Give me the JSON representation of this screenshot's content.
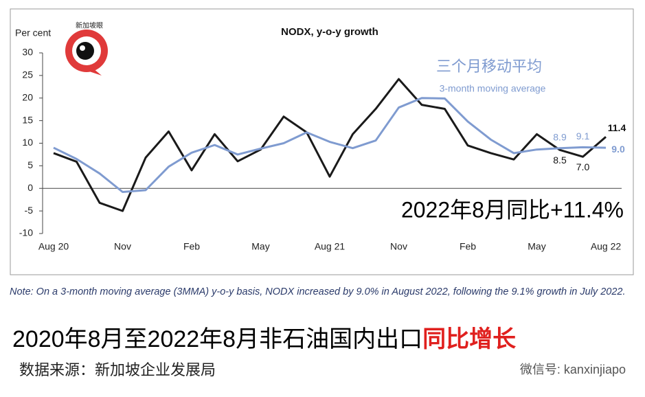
{
  "chart_data": {
    "type": "line",
    "axis_label": "Per cent",
    "title": "NODX, y-o-y growth",
    "categories": [
      "Aug 20",
      null,
      null,
      "Nov",
      null,
      null,
      "Feb",
      null,
      null,
      "May",
      null,
      null,
      "Aug 21",
      null,
      null,
      "Nov",
      null,
      null,
      "Feb",
      null,
      null,
      "May",
      null,
      null,
      "Aug 22"
    ],
    "series": [
      {
        "color": "#1a1a1a",
        "values": [
          7.8,
          5.9,
          -3.2,
          -5,
          6.8,
          12.6,
          4,
          12,
          6,
          8.6,
          15.9,
          12.4,
          2.6,
          12,
          17.6,
          24.2,
          18.5,
          17.6,
          9.5,
          7.8,
          6.4,
          12,
          8.5,
          7.0,
          11.4
        ],
        "value_labels": [
          null,
          null,
          null,
          null,
          null,
          null,
          null,
          null,
          null,
          null,
          null,
          null,
          null,
          null,
          null,
          null,
          null,
          null,
          null,
          null,
          null,
          null,
          "8.5",
          "7.0",
          "11.4"
        ]
      },
      {
        "name": "3-month moving average",
        "color": "#7f9bd0",
        "values": [
          9,
          6.5,
          3.3,
          -0.8,
          -0.4,
          4.8,
          7.9,
          9.6,
          7.5,
          8.8,
          10,
          12.4,
          10.3,
          8.9,
          10.6,
          17.9,
          20,
          19.9,
          14.8,
          10.8,
          7.8,
          8.6,
          8.9,
          9.1,
          9.0
        ],
        "value_labels": [
          null,
          null,
          null,
          null,
          null,
          null,
          null,
          null,
          null,
          null,
          null,
          null,
          null,
          null,
          null,
          null,
          null,
          null,
          null,
          null,
          null,
          null,
          "8.9",
          "9.1",
          "9.0"
        ]
      }
    ],
    "ylim": [
      -10,
      30
    ],
    "yticks": [
      -10,
      -5,
      0,
      5,
      10,
      15,
      20,
      25,
      30
    ],
    "annotations": [
      "三个月移动平均",
      "2022年8月同比+11.4%"
    ]
  },
  "logo": "新加坡眼",
  "note": "Note: On a 3-month moving average (3MMA) y-o-y basis, NODX increased by 9.0% in August 2022, following the 9.1% growth in July 2022.",
  "headline": {
    "text": "2020年8月至2022年8月非石油国内出口",
    "highlight": "同比增长"
  },
  "source": "数据来源：新加坡企业发展局",
  "watermark": "微信号: kanxinjiapo"
}
